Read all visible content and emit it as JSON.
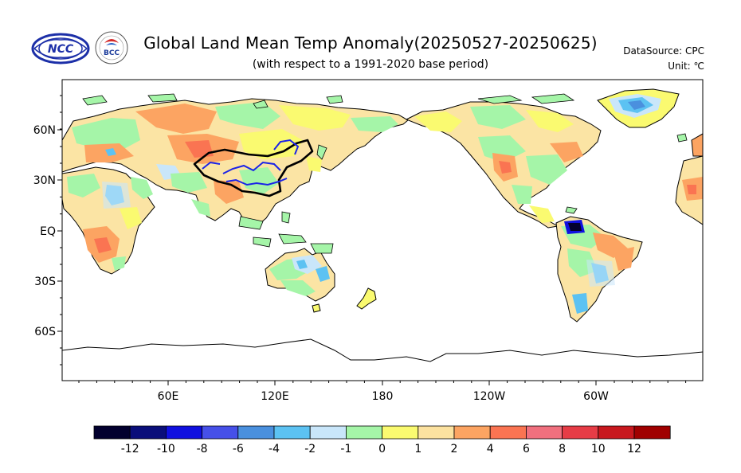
{
  "header": {
    "title": "Global Land Mean Temp Anomaly(20250527-20250625)",
    "subtitle": "(with respect to a 1991-2020 base period)",
    "data_source": "DataSource: CPC",
    "unit": "Unit: ℃",
    "logo_left_text": "NCC",
    "logo_right_text": "BCC"
  },
  "map": {
    "projection": "equirectangular",
    "center_longitude": 180,
    "lat_ticks": [
      "60N",
      "30N",
      "EQ",
      "30S",
      "60S"
    ],
    "lon_ticks": [
      "60E",
      "120E",
      "180",
      "120W",
      "60W"
    ],
    "ocean_color": "#ffffff",
    "highlight_outline": "China boundary (black) with major rivers (blue)"
  },
  "colorbar": {
    "labels": [
      "-12",
      "-10",
      "-8",
      "-6",
      "-4",
      "-2",
      "-1",
      "0",
      "1",
      "2",
      "4",
      "6",
      "8",
      "10",
      "12"
    ],
    "colors": [
      "#02002e",
      "#0a0e7a",
      "#1010e0",
      "#4650e8",
      "#4a90de",
      "#5cc2f2",
      "#c9e6fa",
      "#a5f5a8",
      "#fafa70",
      "#fce2a0",
      "#fca462",
      "#fa7452",
      "#f0707e",
      "#e63c46",
      "#c8181e",
      "#a00000"
    ]
  }
}
